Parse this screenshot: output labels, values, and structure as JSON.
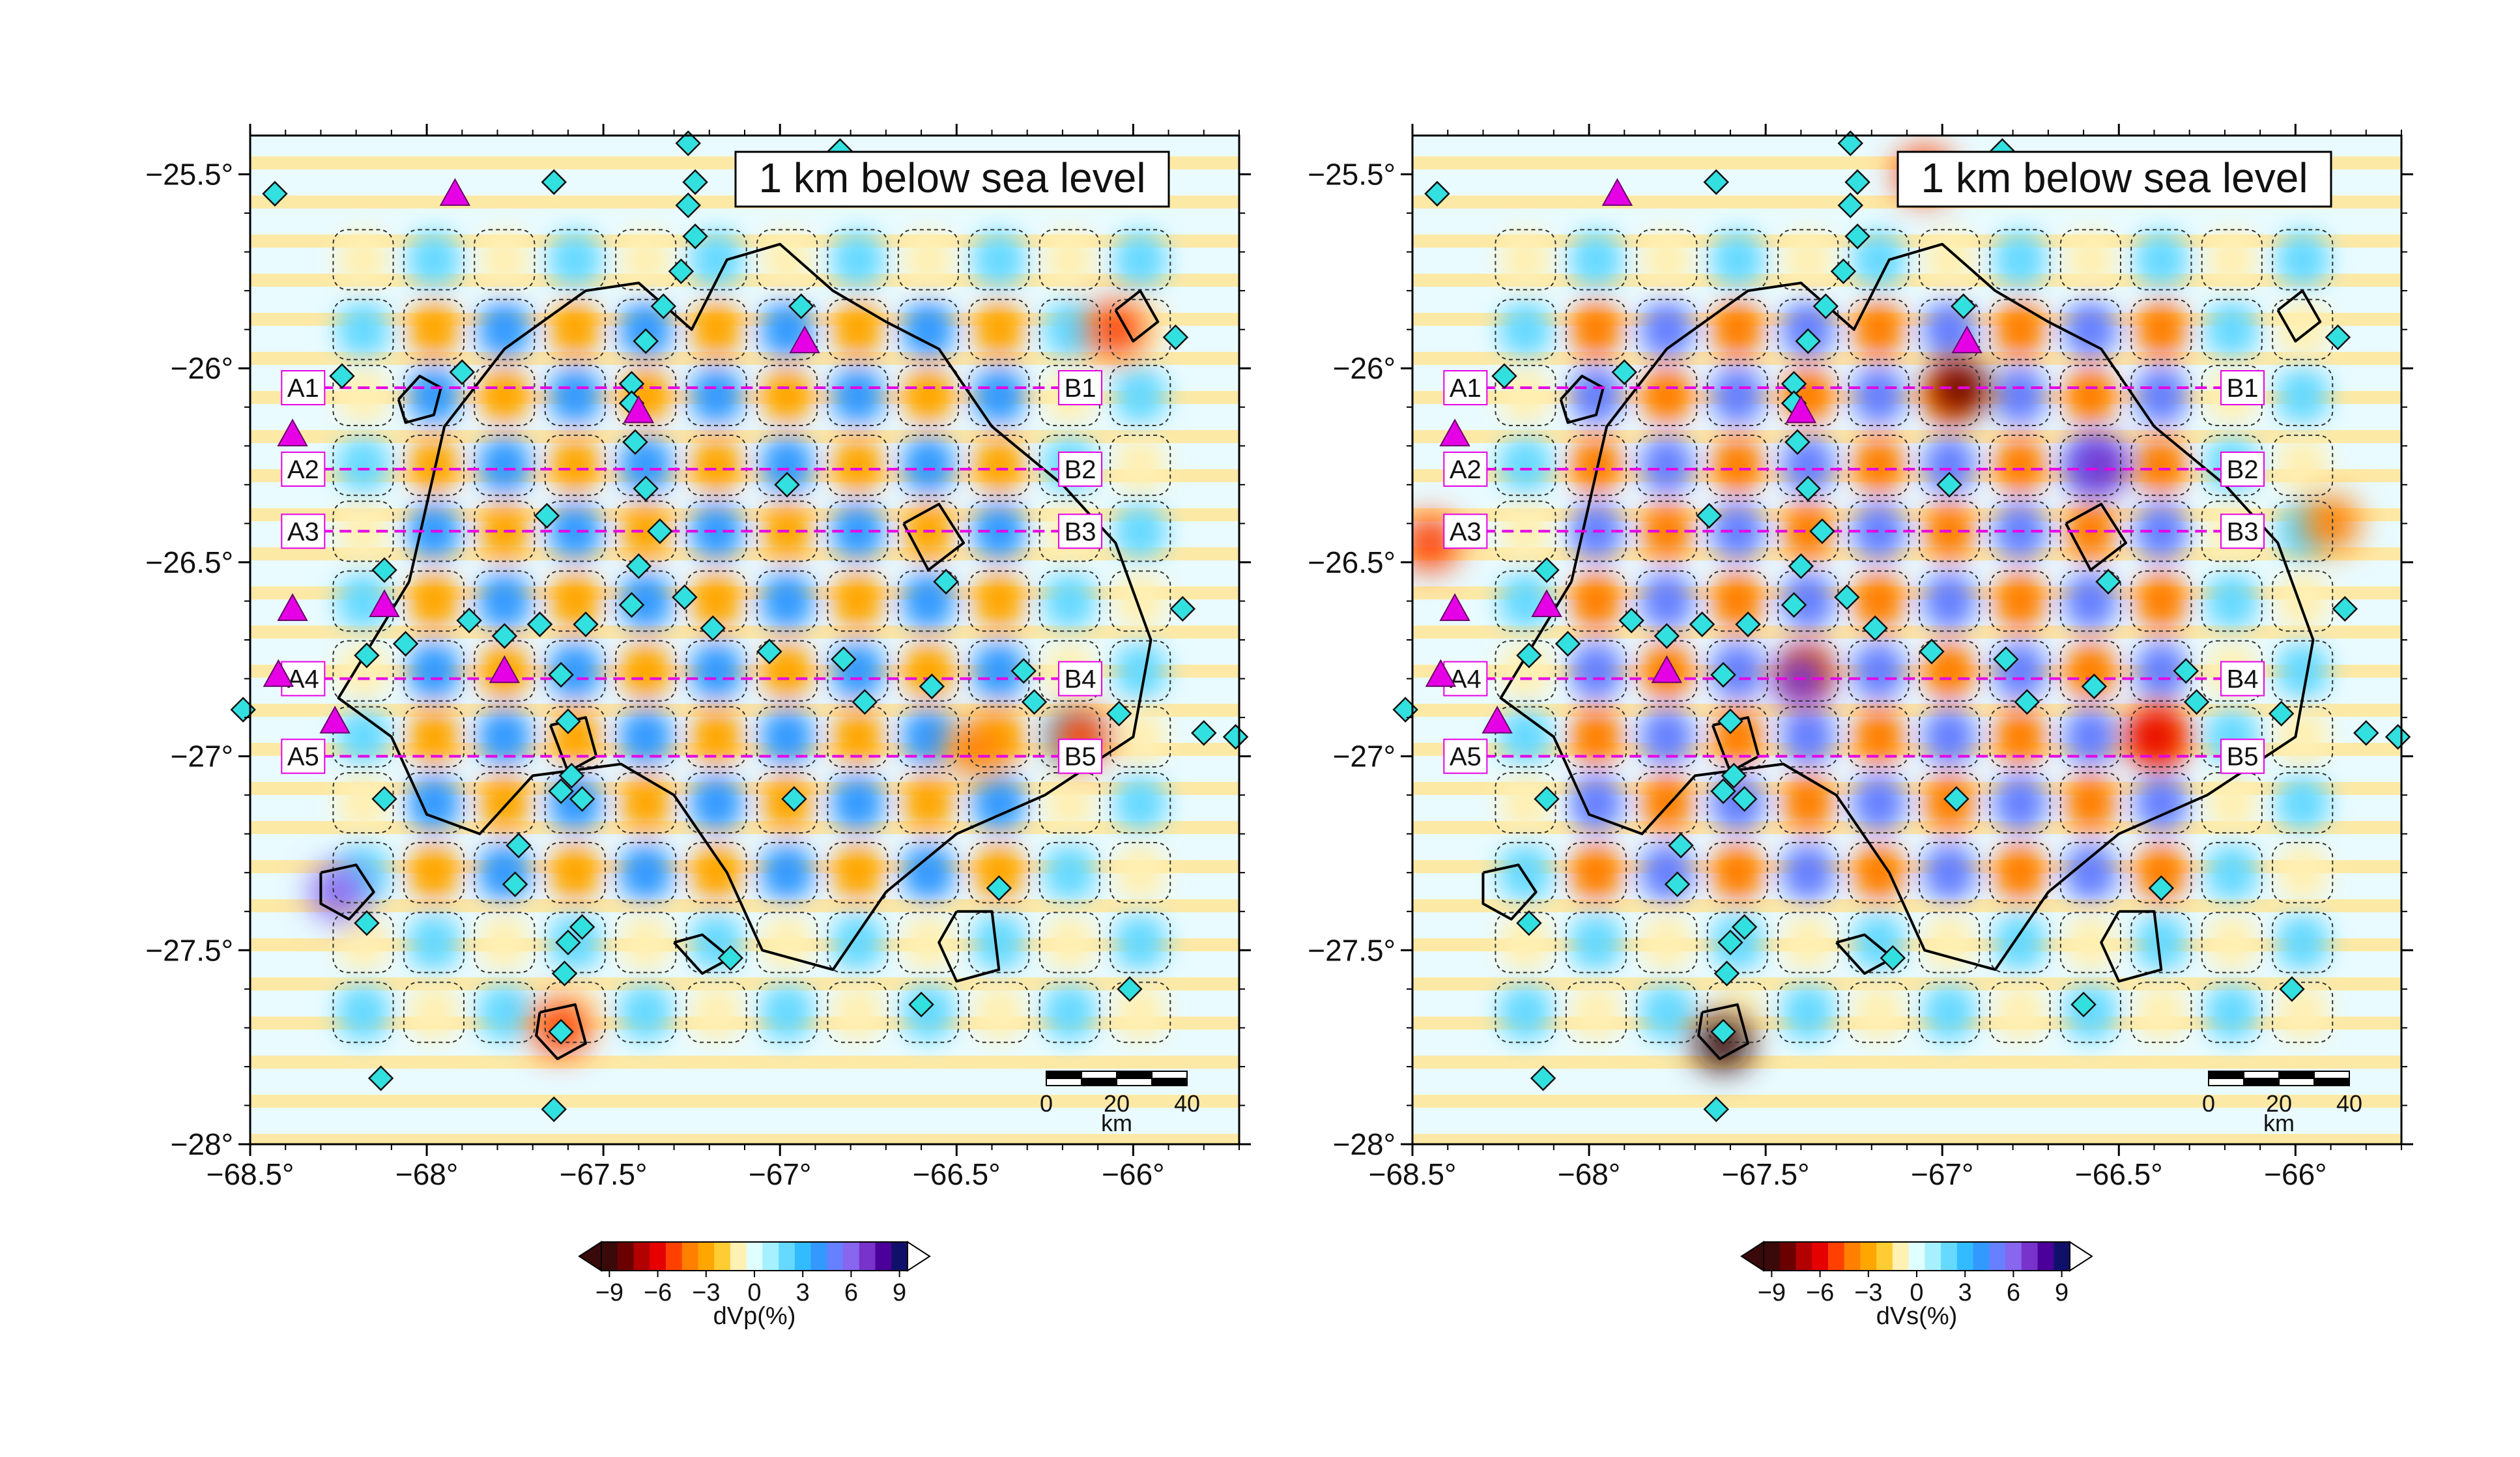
{
  "maps": [
    {
      "id": "vp",
      "depth_label": "1 km below sea level",
      "colorbar": {
        "label": "dVp(%)",
        "ticks": [
          "−9",
          "−6",
          "−3",
          "0",
          "3",
          "6",
          "9"
        ],
        "colors": [
          "#3a0a0a",
          "#6b0000",
          "#b30000",
          "#e60000",
          "#ff4000",
          "#ff7f00",
          "#ffa600",
          "#ffcc33",
          "#fff0b3",
          "#e0ffff",
          "#a6f0ff",
          "#66d9ff",
          "#33bbff",
          "#3399ff",
          "#6680ff",
          "#8866ee",
          "#7733cc",
          "#4b0099",
          "#10106b"
        ]
      }
    },
    {
      "id": "vs",
      "depth_label": "1 km below sea level",
      "colorbar": {
        "label": "dVs(%)",
        "ticks": [
          "−9",
          "−6",
          "−3",
          "0",
          "3",
          "6",
          "9"
        ],
        "colors": [
          "#3a0a0a",
          "#6b0000",
          "#b30000",
          "#e60000",
          "#ff4000",
          "#ff7f00",
          "#ffa600",
          "#ffcc33",
          "#fff0b3",
          "#e0ffff",
          "#a6f0ff",
          "#66d9ff",
          "#33bbff",
          "#3399ff",
          "#6680ff",
          "#8866ee",
          "#7733cc",
          "#4b0099",
          "#10106b"
        ]
      }
    }
  ],
  "axes": {
    "lon_ticks": [
      "−68.5°",
      "−68°",
      "−67.5°",
      "−67°",
      "−66.5°",
      "−66°"
    ],
    "lat_ticks": [
      "−25.5°",
      "−26°",
      "−26.5°",
      "−27°",
      "−27.5°",
      "−28°"
    ],
    "lon_range": [
      -68.5,
      -65.7
    ],
    "lat_range": [
      -28.0,
      -25.4
    ]
  },
  "profiles": [
    {
      "start": "A1",
      "end": "B1",
      "lat": -26.05
    },
    {
      "start": "A2",
      "end": "B2",
      "lat": -26.26
    },
    {
      "start": "A3",
      "end": "B3",
      "lat": -26.42
    },
    {
      "start": "A4",
      "end": "B4",
      "lat": -26.8
    },
    {
      "start": "A5",
      "end": "B5",
      "lat": -27.0
    }
  ],
  "profile_lon_range": [
    -68.35,
    -66.15
  ],
  "scale_bar": {
    "labels": [
      "0",
      "20",
      "40"
    ],
    "unit": "km"
  },
  "volcanoes": [
    {
      "lon": -67.92,
      "lat": -25.55
    },
    {
      "lon": -66.93,
      "lat": -25.93
    },
    {
      "lon": -68.38,
      "lat": -26.17
    },
    {
      "lon": -67.4,
      "lat": -26.11
    },
    {
      "lon": -68.38,
      "lat": -26.62
    },
    {
      "lon": -68.12,
      "lat": -26.61
    },
    {
      "lon": -67.78,
      "lat": -26.78
    },
    {
      "lon": -68.42,
      "lat": -26.79
    },
    {
      "lon": -68.26,
      "lat": -26.91
    }
  ],
  "stations": [
    {
      "lon": -68.43,
      "lat": -25.55
    },
    {
      "lon": -67.64,
      "lat": -25.52
    },
    {
      "lon": -67.26,
      "lat": -25.42
    },
    {
      "lon": -67.24,
      "lat": -25.52
    },
    {
      "lon": -67.26,
      "lat": -25.58
    },
    {
      "lon": -67.24,
      "lat": -25.66
    },
    {
      "lon": -67.28,
      "lat": -25.75
    },
    {
      "lon": -67.33,
      "lat": -25.84
    },
    {
      "lon": -66.83,
      "lat": -25.44
    },
    {
      "lon": -66.94,
      "lat": -25.84
    },
    {
      "lon": -67.38,
      "lat": -25.93
    },
    {
      "lon": -65.88,
      "lat": -25.92
    },
    {
      "lon": -67.9,
      "lat": -26.01
    },
    {
      "lon": -68.24,
      "lat": -26.02
    },
    {
      "lon": -67.42,
      "lat": -26.04
    },
    {
      "lon": -67.42,
      "lat": -26.09
    },
    {
      "lon": -67.41,
      "lat": -26.19
    },
    {
      "lon": -67.38,
      "lat": -26.31
    },
    {
      "lon": -66.98,
      "lat": -26.3
    },
    {
      "lon": -67.66,
      "lat": -26.38
    },
    {
      "lon": -67.34,
      "lat": -26.42
    },
    {
      "lon": -68.12,
      "lat": -26.52
    },
    {
      "lon": -67.4,
      "lat": -26.51
    },
    {
      "lon": -66.53,
      "lat": -26.55
    },
    {
      "lon": -67.27,
      "lat": -26.59
    },
    {
      "lon": -67.42,
      "lat": -26.61
    },
    {
      "lon": -65.86,
      "lat": -26.62
    },
    {
      "lon": -67.88,
      "lat": -26.65
    },
    {
      "lon": -67.68,
      "lat": -26.66
    },
    {
      "lon": -67.55,
      "lat": -26.66
    },
    {
      "lon": -67.19,
      "lat": -26.67
    },
    {
      "lon": -68.06,
      "lat": -26.71
    },
    {
      "lon": -67.78,
      "lat": -26.69
    },
    {
      "lon": -68.17,
      "lat": -26.74
    },
    {
      "lon": -67.03,
      "lat": -26.73
    },
    {
      "lon": -66.82,
      "lat": -26.75
    },
    {
      "lon": -67.62,
      "lat": -26.79
    },
    {
      "lon": -66.57,
      "lat": -26.82
    },
    {
      "lon": -66.31,
      "lat": -26.78
    },
    {
      "lon": -66.76,
      "lat": -26.86
    },
    {
      "lon": -66.28,
      "lat": -26.86
    },
    {
      "lon": -68.52,
      "lat": -26.88
    },
    {
      "lon": -66.04,
      "lat": -26.89
    },
    {
      "lon": -67.6,
      "lat": -26.91
    },
    {
      "lon": -65.8,
      "lat": -26.94
    },
    {
      "lon": -65.71,
      "lat": -26.95
    },
    {
      "lon": -67.59,
      "lat": -27.05
    },
    {
      "lon": -67.62,
      "lat": -27.09
    },
    {
      "lon": -68.12,
      "lat": -27.11
    },
    {
      "lon": -67.56,
      "lat": -27.11
    },
    {
      "lon": -66.96,
      "lat": -27.11
    },
    {
      "lon": -67.74,
      "lat": -27.23
    },
    {
      "lon": -67.75,
      "lat": -27.33
    },
    {
      "lon": -66.38,
      "lat": -27.34
    },
    {
      "lon": -68.17,
      "lat": -27.43
    },
    {
      "lon": -67.56,
      "lat": -27.44
    },
    {
      "lon": -67.6,
      "lat": -27.48
    },
    {
      "lon": -67.14,
      "lat": -27.52
    },
    {
      "lon": -67.61,
      "lat": -27.56
    },
    {
      "lon": -66.01,
      "lat": -27.6
    },
    {
      "lon": -66.6,
      "lat": -27.64
    },
    {
      "lon": -67.62,
      "lat": -27.71
    },
    {
      "lon": -68.13,
      "lat": -27.83
    },
    {
      "lon": -67.64,
      "lat": -27.91
    }
  ],
  "anomalies": [
    {
      "map": "vp",
      "lon": -66.05,
      "lat": -25.9,
      "value": -5
    },
    {
      "map": "vp",
      "lon": -66.15,
      "lat": -26.95,
      "value": -5
    },
    {
      "map": "vp",
      "lon": -66.45,
      "lat": -26.98,
      "value": -4
    },
    {
      "map": "vp",
      "lon": -68.25,
      "lat": -27.35,
      "value": 6
    },
    {
      "map": "vp",
      "lon": -67.62,
      "lat": -27.7,
      "value": -5
    },
    {
      "map": "vs",
      "lon": -67.62,
      "lat": -27.74,
      "value": -9
    },
    {
      "map": "vs",
      "lon": -66.95,
      "lat": -26.05,
      "value": -8
    },
    {
      "map": "vs",
      "lon": -66.4,
      "lat": -26.95,
      "value": -6
    },
    {
      "map": "vs",
      "lon": -67.05,
      "lat": -25.5,
      "value": -5
    },
    {
      "map": "vs",
      "lon": -65.9,
      "lat": -26.4,
      "value": -4
    },
    {
      "map": "vs",
      "lon": -68.45,
      "lat": -26.45,
      "value": -5
    },
    {
      "map": "vs",
      "lon": -66.55,
      "lat": -26.25,
      "value": 7
    },
    {
      "map": "vs",
      "lon": -67.4,
      "lat": -26.8,
      "value": 7
    }
  ]
}
